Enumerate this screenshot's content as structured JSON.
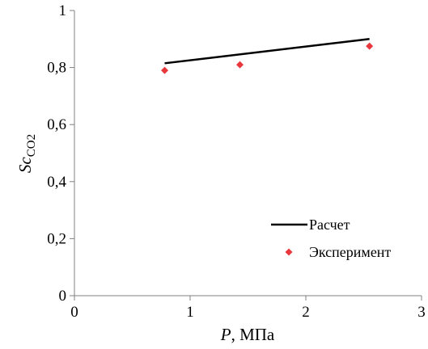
{
  "chart_data": {
    "type": "line",
    "xlabel": {
      "var": "P",
      "unit": ", МПа"
    },
    "ylabel": {
      "var": "Sc",
      "sub": "CO2"
    },
    "xlim": [
      0,
      3
    ],
    "ylim": [
      0,
      1
    ],
    "x_ticks": [
      "0",
      "1",
      "2",
      "3"
    ],
    "y_ticks": [
      "0",
      "0,2",
      "0,4",
      "0,6",
      "0,8",
      "1"
    ],
    "grid": false,
    "legend_position": "bottom-right",
    "series": [
      {
        "name": "Расчет",
        "type": "line",
        "color": "#000000",
        "points": [
          [
            0.78,
            0.815
          ],
          [
            2.55,
            0.9
          ]
        ]
      },
      {
        "name": "Эксперимент",
        "type": "scatter",
        "marker": "diamond",
        "color": "#e8383d",
        "points": [
          [
            0.78,
            0.79
          ],
          [
            1.43,
            0.81
          ],
          [
            2.55,
            0.875
          ]
        ]
      }
    ]
  }
}
